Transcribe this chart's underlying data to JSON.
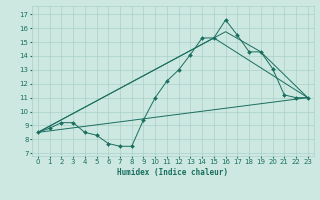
{
  "xlabel": "Humidex (Indice chaleur)",
  "bg_color": "#cce8e0",
  "grid_color": "#aad0c8",
  "line_color": "#1a6e60",
  "xlim": [
    -0.5,
    23.5
  ],
  "ylim": [
    6.8,
    17.6
  ],
  "yticks": [
    7,
    8,
    9,
    10,
    11,
    12,
    13,
    14,
    15,
    16,
    17
  ],
  "xticks": [
    0,
    1,
    2,
    3,
    4,
    5,
    6,
    7,
    8,
    9,
    10,
    11,
    12,
    13,
    14,
    15,
    16,
    17,
    18,
    19,
    20,
    21,
    22,
    23
  ],
  "line1_x": [
    0,
    1,
    2,
    3,
    4,
    5,
    6,
    7,
    8,
    9,
    10,
    11,
    12,
    13,
    14,
    15,
    16,
    17,
    18,
    19,
    20,
    21,
    22,
    23
  ],
  "line1_y": [
    8.5,
    8.8,
    9.2,
    9.2,
    8.5,
    8.3,
    7.7,
    7.5,
    7.5,
    9.4,
    11.0,
    12.2,
    13.0,
    14.1,
    15.3,
    15.3,
    16.6,
    15.5,
    14.3,
    14.3,
    13.1,
    11.2,
    11.0,
    11.0
  ],
  "line2_x": [
    0,
    15,
    23
  ],
  "line2_y": [
    8.5,
    15.3,
    11.0
  ],
  "line3_x": [
    0,
    16,
    19,
    23
  ],
  "line3_y": [
    8.5,
    15.75,
    14.3,
    11.0
  ],
  "line4_x": [
    0,
    23
  ],
  "line4_y": [
    8.5,
    11.0
  ],
  "xlabel_fontsize": 5.5,
  "tick_fontsize": 5.0,
  "linewidth": 0.7,
  "markersize": 2.0
}
